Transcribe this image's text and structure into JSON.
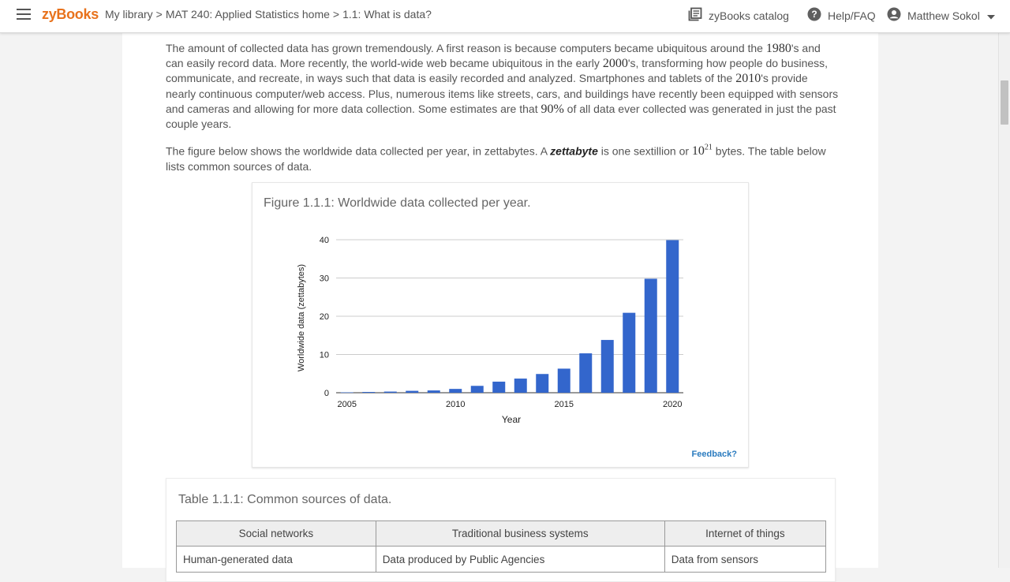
{
  "topbar": {
    "logo": "zyBooks",
    "breadcrumbs": [
      "My library",
      "MAT 240: Applied Statistics home",
      "1.1: What is data?"
    ],
    "breadcrumb_sep": ">",
    "catalog_label": "zyBooks catalog",
    "help_label": "Help/FAQ",
    "user_name": "Matthew Sokol",
    "icons": [
      "menu-icon",
      "catalog-icon",
      "help-icon",
      "account-icon",
      "chevron-down-icon"
    ],
    "accent_color": "#e8721c"
  },
  "intro": {
    "p1": {
      "t1": "The amount of collected data has grown tremendously. A first reason is because computers became ubiquitous around the ",
      "m1": "1980",
      "t2": "'s and can easily record data. More recently, the world-wide web became ubiquitous in the early ",
      "m2": "2000",
      "t3": "'s, transforming how people do business, communicate, and recreate, in ways such that data is easily recorded and analyzed. Smartphones and tablets of the ",
      "m3": "2010",
      "t4": "'s provide nearly continuous computer/web access. Plus, numerous items like streets, cars, and buildings have recently been equipped with sensors and cameras and allowing for more data collection. Some estimates are that ",
      "m4": "90%",
      "t5": " of all data ever collected was generated in just the past couple years."
    },
    "p2": {
      "t1": "The figure below shows the worldwide data collected per year, in zettabytes. A ",
      "term": "zettabyte",
      "t2": " is one sextillion or ",
      "m1": "10",
      "sup": "21",
      "t3": " bytes. The table below lists common sources of data."
    }
  },
  "figure": {
    "caption": "Figure 1.1.1: Worldwide data collected per year.",
    "feedback": "Feedback?"
  },
  "chart_data": {
    "type": "bar",
    "x": [
      2005,
      2006,
      2007,
      2008,
      2009,
      2010,
      2011,
      2012,
      2013,
      2014,
      2015,
      2016,
      2017,
      2018,
      2019,
      2020
    ],
    "values": [
      0.1,
      0.2,
      0.3,
      0.5,
      0.6,
      1.0,
      1.8,
      2.9,
      3.7,
      4.9,
      6.3,
      10.3,
      13.8,
      20.9,
      29.8,
      39.9
    ],
    "xlabel": "Year",
    "ylabel": "Worldwide data (zettabytes)",
    "ylim": [
      0,
      40
    ],
    "yticks": [
      0,
      10,
      20,
      30,
      40
    ],
    "xticks": [
      2005,
      2010,
      2015,
      2020
    ],
    "grid": true,
    "bar_color": "#3366cc"
  },
  "table": {
    "caption": "Table 1.1.1: Common sources of data.",
    "headers": [
      "Social networks",
      "Traditional business systems",
      "Internet of things"
    ],
    "rows": [
      [
        "Human-generated data",
        "Data produced by Public Agencies",
        "Data from sensors"
      ]
    ]
  }
}
